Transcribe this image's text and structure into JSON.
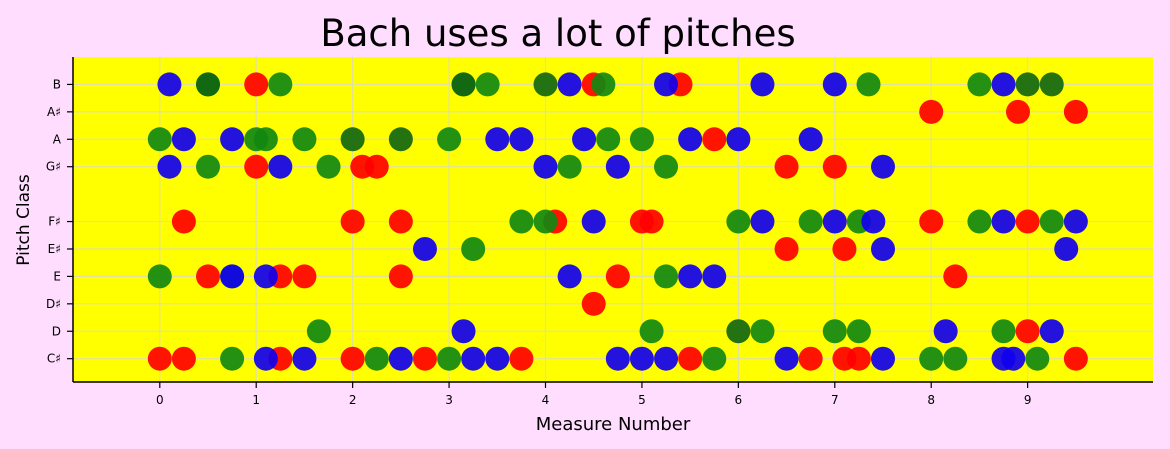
{
  "chart_data": {
    "type": "scatter",
    "title": "Bach uses a lot of pitches",
    "xlabel": "Measure Number",
    "ylabel": "Pitch Class",
    "xlim": [
      -0.9,
      10.3
    ],
    "ylim": [
      -0.85,
      11.0
    ],
    "x_ticks": [
      0,
      1,
      2,
      3,
      4,
      5,
      6,
      7,
      8,
      9
    ],
    "x_tick_labels": [
      "0",
      "1",
      "2",
      "3",
      "4",
      "5",
      "6",
      "7",
      "8",
      "9"
    ],
    "y_ticks": [
      0,
      1,
      2,
      3,
      4,
      5,
      7,
      8,
      9,
      10
    ],
    "y_tick_labels": [
      "C♯",
      "D",
      "D♯",
      "E",
      "E♯",
      "F♯",
      "G♯",
      "A",
      "A♯",
      "B"
    ],
    "grid": true,
    "colors": {
      "figure_bg": "#ffddff",
      "plot_bg": "#ffff00",
      "grid": "#e0e0a0",
      "red": "#ff0000",
      "green": "#118811",
      "blue": "#1100ee",
      "dark_green": "#116611"
    },
    "series": [
      {
        "name": "red",
        "color": "#ff0000",
        "points": [
          [
            0,
            0
          ],
          [
            0.25,
            0
          ],
          [
            1.25,
            0
          ],
          [
            2.0,
            0
          ],
          [
            2.75,
            0
          ],
          [
            3.75,
            0
          ],
          [
            5.5,
            0
          ],
          [
            6.75,
            0
          ],
          [
            7.1,
            0
          ],
          [
            7.25,
            0
          ],
          [
            9.5,
            0
          ],
          [
            9.0,
            1
          ],
          [
            4.5,
            2
          ],
          [
            0.5,
            3
          ],
          [
            1.25,
            3
          ],
          [
            1.5,
            3
          ],
          [
            2.5,
            3
          ],
          [
            4.75,
            3
          ],
          [
            8.25,
            3
          ],
          [
            6.5,
            4
          ],
          [
            7.1,
            4
          ],
          [
            0.25,
            5
          ],
          [
            2.0,
            5
          ],
          [
            2.5,
            5
          ],
          [
            4.1,
            5
          ],
          [
            5.0,
            5
          ],
          [
            5.1,
            5
          ],
          [
            8.0,
            5
          ],
          [
            9.0,
            5
          ],
          [
            1.0,
            7
          ],
          [
            2.1,
            7
          ],
          [
            2.25,
            7
          ],
          [
            6.5,
            7
          ],
          [
            7.0,
            7
          ],
          [
            5.75,
            8
          ],
          [
            8.0,
            9
          ],
          [
            8.9,
            9
          ],
          [
            9.5,
            9
          ],
          [
            1.0,
            10
          ],
          [
            4.5,
            10
          ],
          [
            5.4,
            10
          ]
        ]
      },
      {
        "name": "green",
        "color": "#118811",
        "points": [
          [
            0.75,
            0
          ],
          [
            2.25,
            0
          ],
          [
            3.0,
            0
          ],
          [
            5.75,
            0
          ],
          [
            8.0,
            0
          ],
          [
            8.25,
            0
          ],
          [
            9.1,
            0
          ],
          [
            1.65,
            1
          ],
          [
            5.1,
            1
          ],
          [
            6.25,
            1
          ],
          [
            7.0,
            1
          ],
          [
            7.25,
            1
          ],
          [
            8.75,
            1
          ],
          [
            0,
            3
          ],
          [
            0.75,
            3
          ],
          [
            5.25,
            3
          ],
          [
            3.25,
            4
          ],
          [
            3.75,
            5
          ],
          [
            4.0,
            5
          ],
          [
            6.0,
            5
          ],
          [
            6.75,
            5
          ],
          [
            7.25,
            5
          ],
          [
            8.5,
            5
          ],
          [
            9.25,
            5
          ],
          [
            0.5,
            7
          ],
          [
            1.75,
            7
          ],
          [
            4.25,
            7
          ],
          [
            5.25,
            7
          ],
          [
            0,
            8
          ],
          [
            1.0,
            8
          ],
          [
            1.1,
            8
          ],
          [
            1.5,
            8
          ],
          [
            3.0,
            8
          ],
          [
            4.65,
            8
          ],
          [
            5.0,
            8
          ],
          [
            0.5,
            10
          ],
          [
            1.25,
            10
          ],
          [
            3.15,
            10
          ],
          [
            3.4,
            10
          ],
          [
            4.6,
            10
          ],
          [
            7.35,
            10
          ],
          [
            8.5,
            10
          ]
        ]
      },
      {
        "name": "dark-green",
        "color": "#116611",
        "points": [
          [
            6.0,
            1
          ],
          [
            2.0,
            8
          ],
          [
            2.5,
            8
          ],
          [
            0.5,
            10
          ],
          [
            3.15,
            10
          ],
          [
            4.0,
            10
          ],
          [
            9.0,
            10
          ],
          [
            9.25,
            10
          ]
        ]
      },
      {
        "name": "blue",
        "color": "#1100ee",
        "points": [
          [
            1.1,
            0
          ],
          [
            1.5,
            0
          ],
          [
            2.5,
            0
          ],
          [
            3.25,
            0
          ],
          [
            3.5,
            0
          ],
          [
            4.75,
            0
          ],
          [
            5.0,
            0
          ],
          [
            5.25,
            0
          ],
          [
            6.5,
            0
          ],
          [
            7.5,
            0
          ],
          [
            8.75,
            0
          ],
          [
            8.85,
            0
          ],
          [
            3.15,
            1
          ],
          [
            8.15,
            1
          ],
          [
            9.25,
            1
          ],
          [
            0.75,
            3
          ],
          [
            1.1,
            3
          ],
          [
            4.25,
            3
          ],
          [
            5.5,
            3
          ],
          [
            5.75,
            3
          ],
          [
            2.75,
            4
          ],
          [
            7.5,
            4
          ],
          [
            9.4,
            4
          ],
          [
            4.5,
            5
          ],
          [
            6.25,
            5
          ],
          [
            7.0,
            5
          ],
          [
            7.4,
            5
          ],
          [
            8.75,
            5
          ],
          [
            9.5,
            5
          ],
          [
            0.1,
            7
          ],
          [
            1.25,
            7
          ],
          [
            4.0,
            7
          ],
          [
            4.75,
            7
          ],
          [
            7.5,
            7
          ],
          [
            0.25,
            8
          ],
          [
            0.75,
            8
          ],
          [
            3.5,
            8
          ],
          [
            3.75,
            8
          ],
          [
            4.4,
            8
          ],
          [
            5.5,
            8
          ],
          [
            6.0,
            8
          ],
          [
            6.75,
            8
          ],
          [
            0.1,
            10
          ],
          [
            4.25,
            10
          ],
          [
            5.25,
            10
          ],
          [
            6.25,
            10
          ],
          [
            7.0,
            10
          ],
          [
            8.75,
            10
          ]
        ]
      }
    ]
  }
}
